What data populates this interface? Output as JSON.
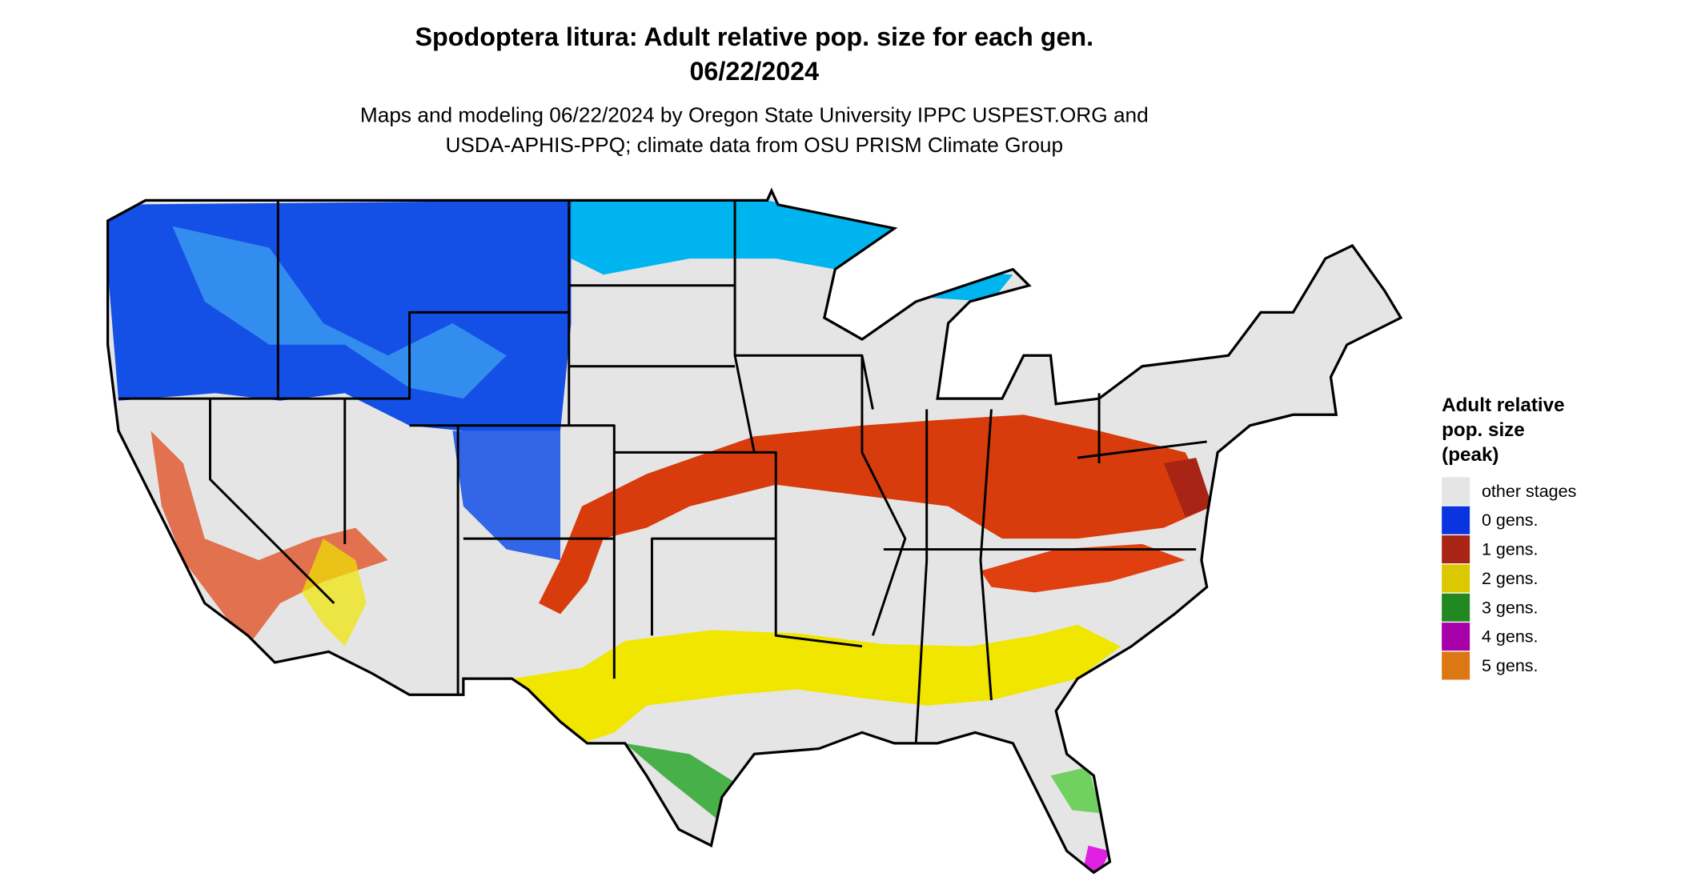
{
  "header": {
    "title": "Spodoptera litura: Adult relative pop. size for each gen.",
    "date": "06/22/2024",
    "subtitle_lines": [
      "Maps and modeling 06/22/2024 by Oregon State University IPPC USPEST.ORG and",
      "USDA-APHIS-PPQ; climate data from OSU PRISM Climate Group"
    ]
  },
  "legend": {
    "title_lines": [
      "Adult relative",
      "pop. size",
      "(peak)"
    ],
    "items": [
      {
        "label": "other stages",
        "color": "#e5e5e5"
      },
      {
        "label": "0 gens.",
        "color": "#0a34e0"
      },
      {
        "label": "1 gens.",
        "color": "#a82414"
      },
      {
        "label": "2 gens.",
        "color": "#dcc800"
      },
      {
        "label": "3 gens.",
        "color": "#228822"
      },
      {
        "label": "4 gens.",
        "color": "#a800a8"
      },
      {
        "label": "5 gens.",
        "color": "#dc7814"
      }
    ]
  }
}
